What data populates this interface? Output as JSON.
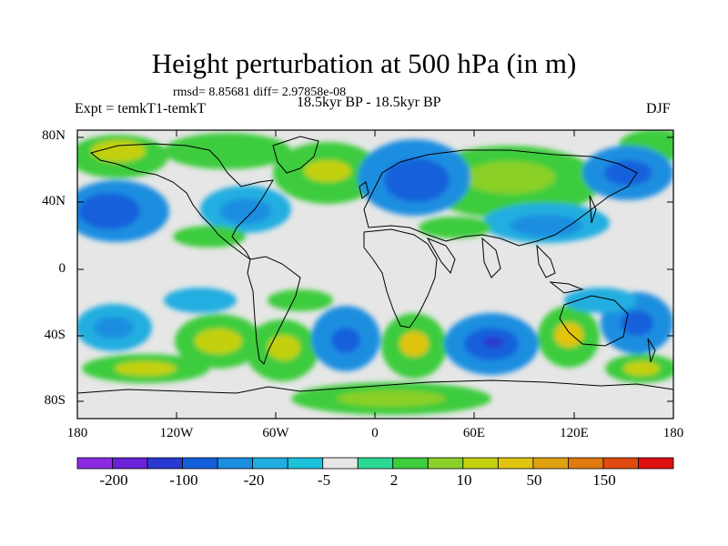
{
  "title": "Height perturbation at 500 hPa (in m)",
  "stats": "rmsd= 8.85681 diff= 2.97858e-08",
  "left_label": "Expt = temkT1-temkT",
  "center_label": "18.5kyr BP - 18.5kyr BP",
  "right_label": "DJF",
  "map": {
    "lon_range": [
      -180,
      180
    ],
    "lat_range": [
      -90,
      90
    ],
    "lat_ticks": [
      "80N",
      "40N",
      "0",
      "40S",
      "80S"
    ],
    "lon_ticks": [
      "180",
      "120W",
      "60W",
      "0",
      "60E",
      "120E",
      "180"
    ]
  },
  "colorbar": {
    "tick_labels": [
      "-200",
      "-100",
      "-20",
      "-5",
      "2",
      "10",
      "50",
      "150"
    ],
    "colors": [
      "#8a2be2",
      "#6a22d8",
      "#2a3ad0",
      "#1460dc",
      "#1a8ee0",
      "#20aee0",
      "#1cc2dc",
      "#e6e6e6",
      "#2ad894",
      "#3ccc3c",
      "#8ad028",
      "#c4d010",
      "#e0c410",
      "#e0a010",
      "#e07a10",
      "#e04a10",
      "#e01010"
    ]
  }
}
